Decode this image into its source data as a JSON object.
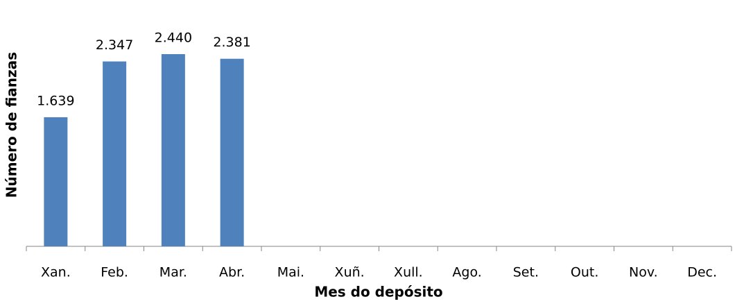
{
  "chart_data": {
    "type": "bar",
    "x_label": "Mes do depósito",
    "y_label": "Número de fianzas",
    "categories": [
      "Xan.",
      "Feb.",
      "Mar.",
      "Abr.",
      "Mai.",
      "Xuñ.",
      "Xull.",
      "Ago.",
      "Set.",
      "Out.",
      "Nov.",
      "Dec."
    ],
    "values": [
      1639,
      2347,
      2440,
      2381,
      null,
      null,
      null,
      null,
      null,
      null,
      null,
      null
    ],
    "value_labels": [
      "1.639",
      "2.347",
      "2.440",
      "2.381",
      null,
      null,
      null,
      null,
      null,
      null,
      null,
      null
    ],
    "color": "#4f81bd"
  }
}
